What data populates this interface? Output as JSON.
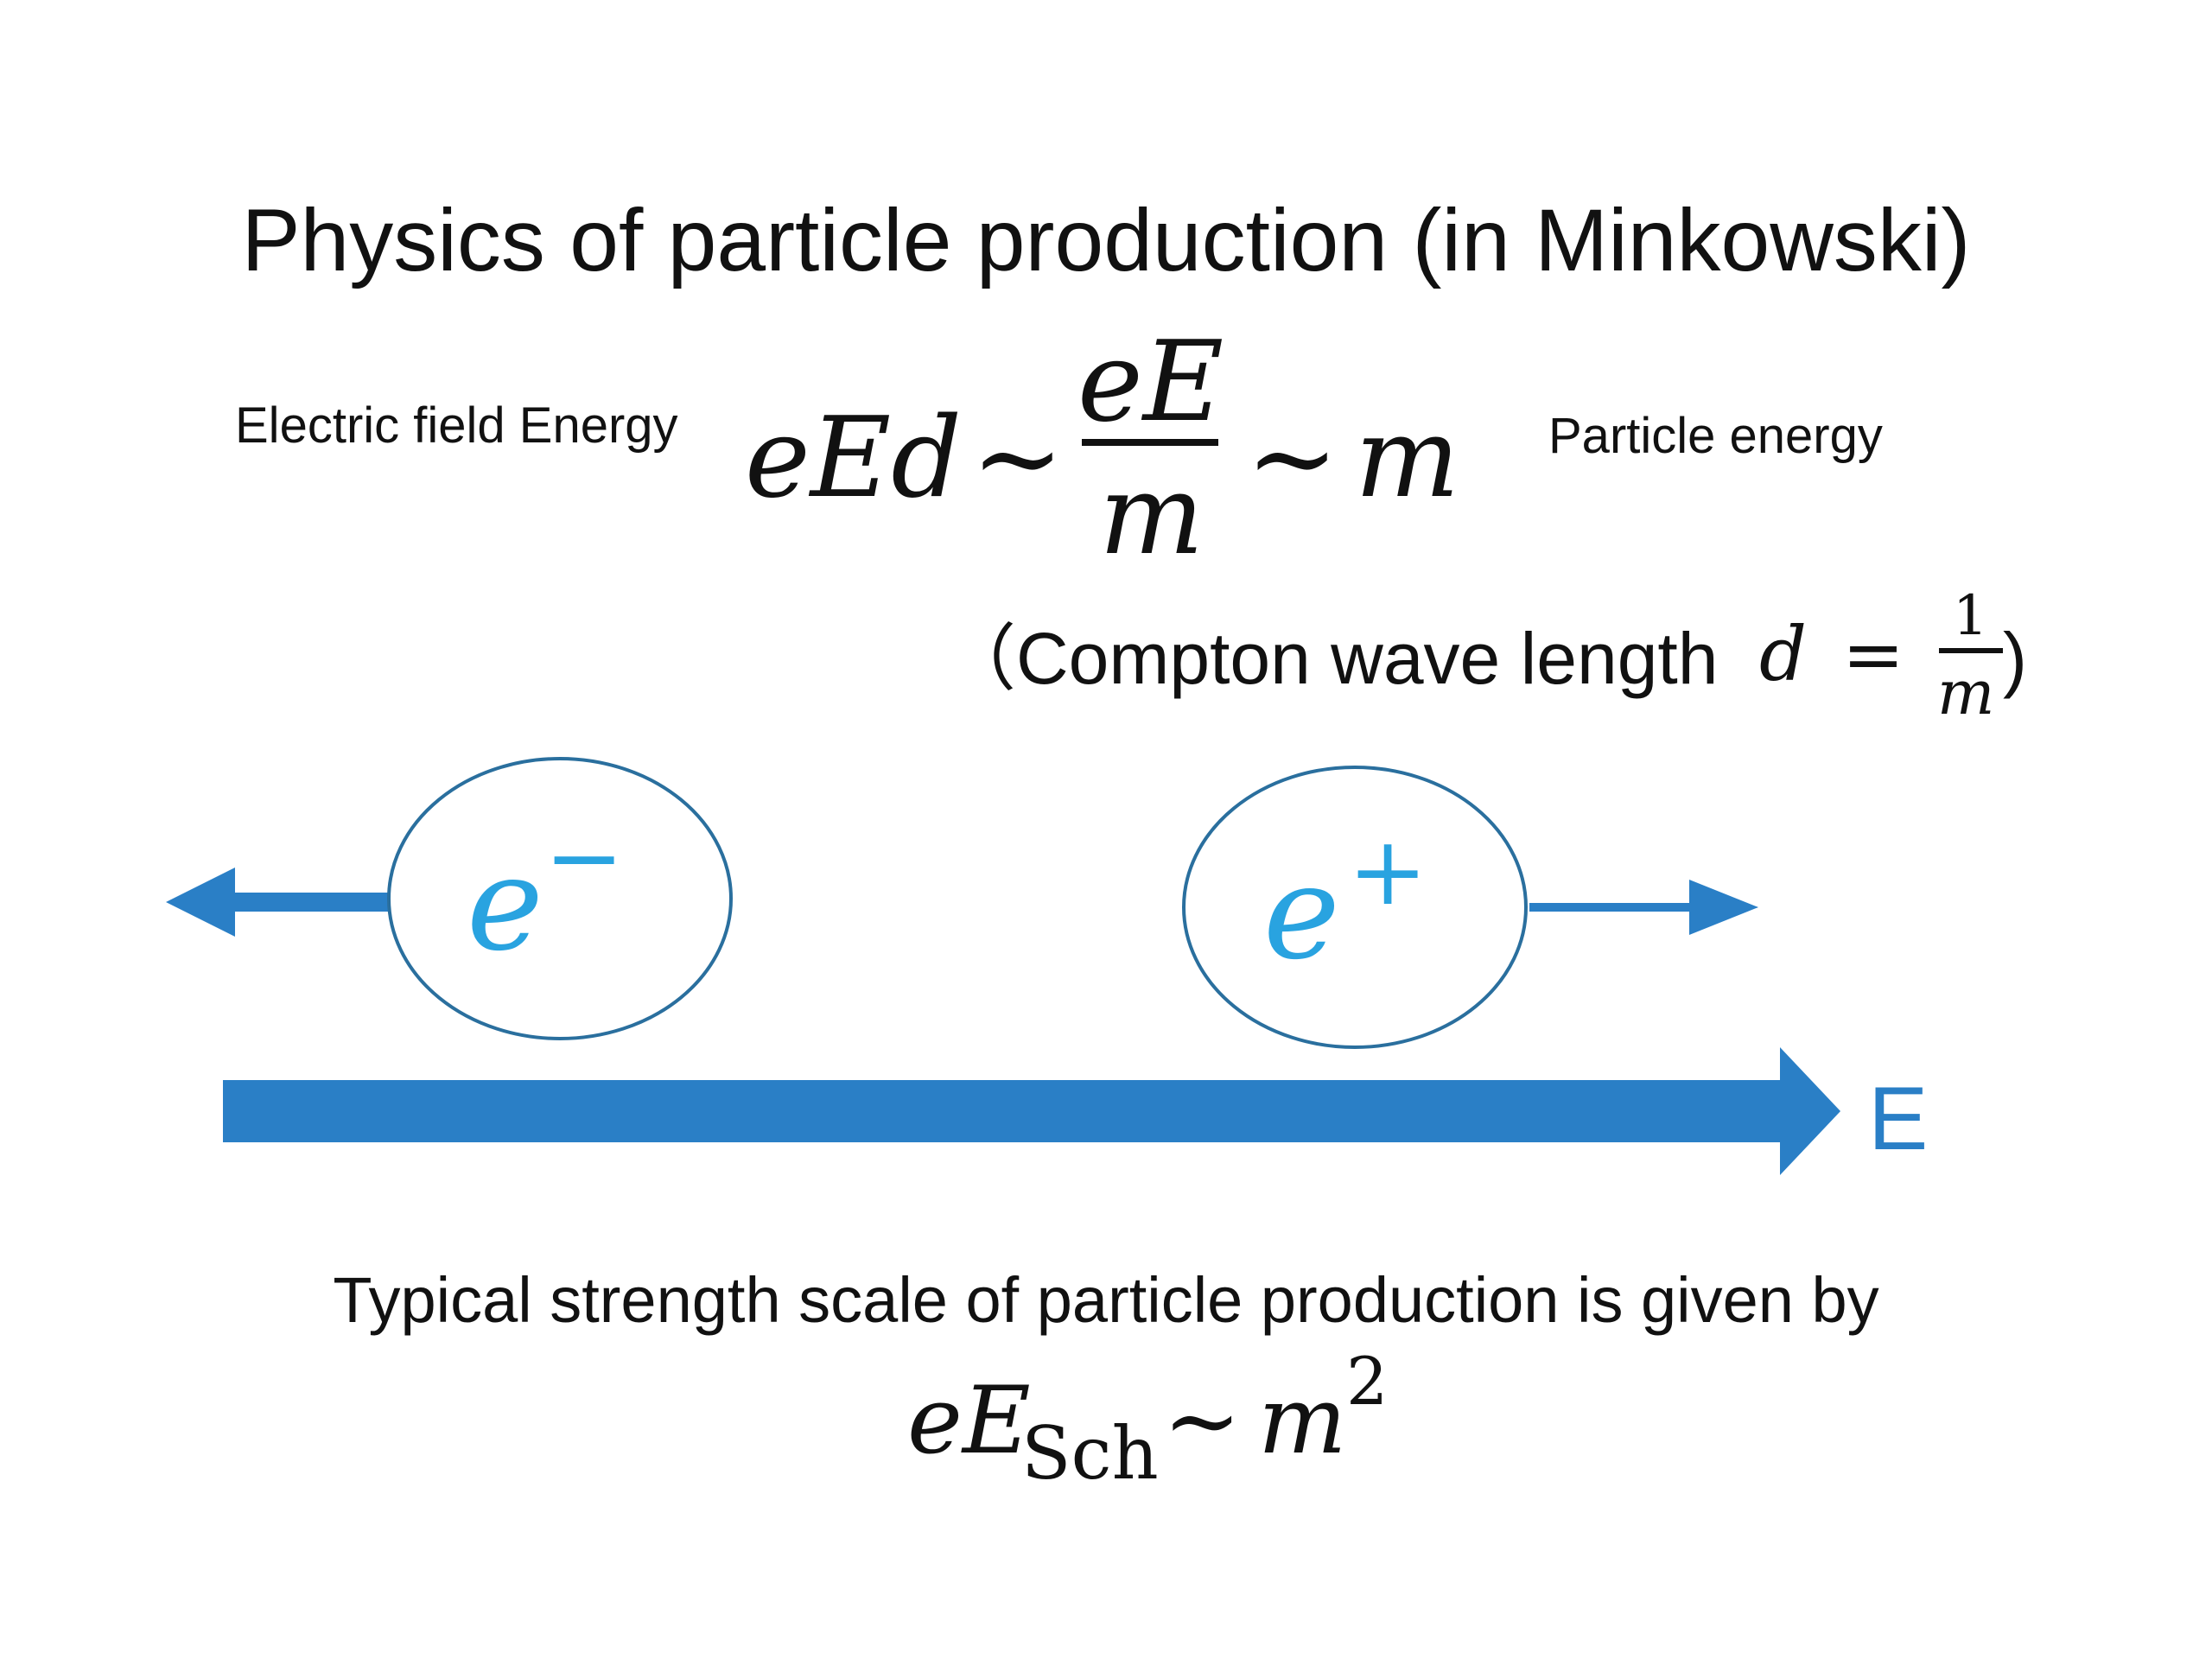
{
  "title": "Physics of particle production (in Minkowski)",
  "labels": {
    "left": "Electric field Energy",
    "right": "Particle energy"
  },
  "main_equation": {
    "lhs": "eEd",
    "sim": "∼",
    "frac_num": "eE",
    "frac_den": "m",
    "rhs": "m"
  },
  "compton": {
    "text": "（Compton wave length",
    "var": "d",
    "eq": "=",
    "num": "1",
    "den": "m",
    "close": ")"
  },
  "particles": {
    "electron": {
      "base": "e",
      "sign": "−"
    },
    "positron": {
      "base": "e",
      "sign": "+"
    }
  },
  "field_label": "E",
  "caption": "Typical strength scale of particle production is given by",
  "bottom_equation": {
    "lhs": "eE",
    "sub": "Sch",
    "sim": "∼",
    "rhs": "m",
    "sup": "2"
  },
  "colors": {
    "arrow": "#2a7fc6",
    "particle_text": "#29a3e0",
    "circle_stroke": "#2a6f9e"
  }
}
